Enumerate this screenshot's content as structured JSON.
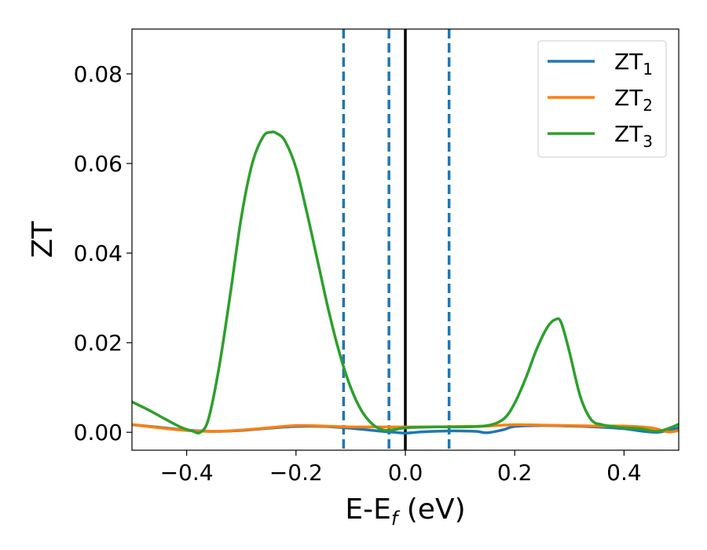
{
  "chart_data": {
    "type": "line",
    "xlabel": "E-E",
    "xlabel_sub": "f",
    "xlabel_unit": " (eV)",
    "ylabel": "ZT",
    "xlim": [
      -0.5,
      0.5
    ],
    "ylim": [
      -0.004,
      0.09
    ],
    "xticks": [
      -0.4,
      -0.2,
      0.0,
      0.2,
      0.4
    ],
    "xtick_labels": [
      "−0.4",
      "−0.2",
      "0.0",
      "0.2",
      "0.4"
    ],
    "yticks": [
      0.0,
      0.02,
      0.04,
      0.06,
      0.08
    ],
    "ytick_labels": [
      "0.00",
      "0.02",
      "0.04",
      "0.06",
      "0.08"
    ],
    "grid": false,
    "legend_position": "top-right",
    "vertical_lines": [
      {
        "x": -0.113,
        "style": "dashed",
        "color": "#1f77b4"
      },
      {
        "x": -0.03,
        "style": "dashed",
        "color": "#1f77b4"
      },
      {
        "x": 0.0,
        "style": "solid",
        "color": "#000000"
      },
      {
        "x": 0.08,
        "style": "dashed",
        "color": "#1f77b4"
      }
    ],
    "series": [
      {
        "name": "ZT",
        "sub": "1",
        "color": "#1f77b4",
        "x": [
          -0.5,
          -0.45,
          -0.4,
          -0.35,
          -0.3,
          -0.25,
          -0.2,
          -0.15,
          -0.1,
          -0.05,
          -0.02,
          0.0,
          0.02,
          0.05,
          0.08,
          0.1,
          0.13,
          0.15,
          0.18,
          0.2,
          0.25,
          0.3,
          0.35,
          0.4,
          0.43,
          0.46,
          0.48,
          0.5
        ],
        "y": [
          0.0017,
          0.0011,
          0.0005,
          0.0002,
          0.0004,
          0.0009,
          0.0013,
          0.0013,
          0.0009,
          0.0003,
          0.0,
          -0.0002,
          0.0,
          0.0002,
          0.0003,
          0.0003,
          0.0002,
          -0.0001,
          0.0006,
          0.0013,
          0.0015,
          0.0014,
          0.0012,
          0.0008,
          0.0003,
          0.0,
          0.0004,
          0.001
        ]
      },
      {
        "name": "ZT",
        "sub": "2",
        "color": "#ff7f0e",
        "x": [
          -0.5,
          -0.45,
          -0.4,
          -0.35,
          -0.3,
          -0.25,
          -0.2,
          -0.15,
          -0.1,
          -0.05,
          0.0,
          0.05,
          0.1,
          0.15,
          0.2,
          0.25,
          0.3,
          0.35,
          0.4,
          0.45,
          0.48,
          0.5
        ],
        "y": [
          0.0017,
          0.001,
          0.0004,
          0.0002,
          0.0005,
          0.001,
          0.0015,
          0.0014,
          0.0012,
          0.0012,
          0.0012,
          0.0012,
          0.0013,
          0.0014,
          0.0017,
          0.0016,
          0.0015,
          0.0014,
          0.0014,
          0.001,
          0.0001,
          0.0004
        ]
      },
      {
        "name": "ZT",
        "sub": "3",
        "color": "#2ca02c",
        "x": [
          -0.5,
          -0.47,
          -0.44,
          -0.41,
          -0.39,
          -0.375,
          -0.36,
          -0.34,
          -0.32,
          -0.3,
          -0.28,
          -0.26,
          -0.245,
          -0.235,
          -0.22,
          -0.2,
          -0.18,
          -0.16,
          -0.14,
          -0.12,
          -0.1,
          -0.08,
          -0.06,
          -0.04,
          -0.02,
          0.0,
          0.05,
          0.1,
          0.15,
          0.18,
          0.2,
          0.22,
          0.24,
          0.26,
          0.275,
          0.285,
          0.3,
          0.32,
          0.34,
          0.36,
          0.38,
          0.4,
          0.43,
          0.46,
          0.48,
          0.5
        ],
        "y": [
          0.0068,
          0.005,
          0.003,
          0.0011,
          0.0003,
          0.0,
          0.003,
          0.015,
          0.031,
          0.048,
          0.06,
          0.066,
          0.067,
          0.0667,
          0.065,
          0.059,
          0.049,
          0.038,
          0.027,
          0.0175,
          0.01,
          0.0048,
          0.0018,
          0.0005,
          0.0006,
          0.001,
          0.0012,
          0.0012,
          0.0015,
          0.003,
          0.0065,
          0.012,
          0.0185,
          0.0235,
          0.0252,
          0.0245,
          0.018,
          0.008,
          0.0028,
          0.0017,
          0.0013,
          0.001,
          0.0008,
          0.0002,
          0.0008,
          0.0018
        ]
      }
    ]
  }
}
